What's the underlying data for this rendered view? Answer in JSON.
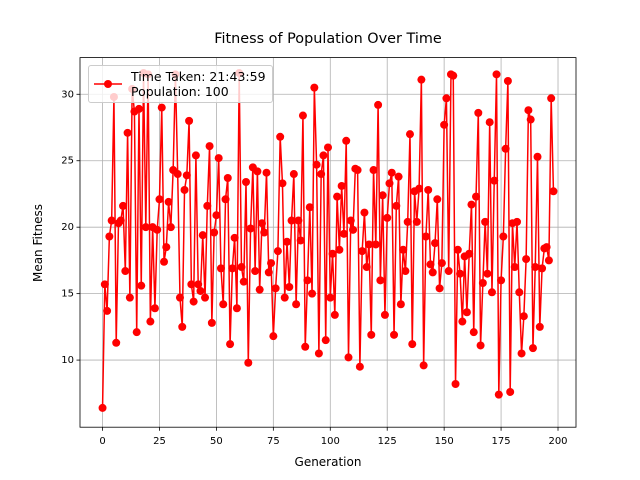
{
  "chart_data": {
    "type": "line",
    "title": "Fitness of Population Over Time",
    "x_label": "Generation",
    "y_label": "Mean Fitness",
    "x": [
      0,
      1,
      2,
      3,
      4,
      5,
      6,
      7,
      8,
      9,
      10,
      11,
      12,
      13,
      14,
      15,
      16,
      17,
      18,
      19,
      20,
      21,
      22,
      23,
      24,
      25,
      26,
      27,
      28,
      29,
      30,
      31,
      32,
      33,
      34,
      35,
      36,
      37,
      38,
      39,
      40,
      41,
      42,
      43,
      44,
      45,
      46,
      47,
      48,
      49,
      50,
      51,
      52,
      53,
      54,
      55,
      56,
      57,
      58,
      59,
      60,
      61,
      62,
      63,
      64,
      65,
      66,
      67,
      68,
      69,
      70,
      71,
      72,
      73,
      74,
      75,
      76,
      77,
      78,
      79,
      80,
      81,
      82,
      83,
      84,
      85,
      86,
      87,
      88,
      89,
      90,
      91,
      92,
      93,
      94,
      95,
      96,
      97,
      98,
      99,
      100,
      101,
      102,
      103,
      104,
      105,
      106,
      107,
      108,
      109,
      110,
      111,
      112,
      113,
      114,
      115,
      116,
      117,
      118,
      119,
      120,
      121,
      122,
      123,
      124,
      125,
      126,
      127,
      128,
      129,
      130,
      131,
      132,
      133,
      134,
      135,
      136,
      137,
      138,
      139,
      140,
      141,
      142,
      143,
      144,
      145,
      146,
      147,
      148,
      149,
      150,
      151,
      152,
      153,
      154,
      155,
      156,
      157,
      158,
      159,
      160,
      161,
      162,
      163,
      164,
      165,
      166,
      167,
      168,
      169,
      170,
      171,
      172,
      173,
      174,
      175,
      176,
      177,
      178,
      179,
      180,
      181,
      182,
      183,
      184,
      185,
      186,
      187,
      188,
      189,
      190,
      191,
      192,
      193,
      194,
      195,
      196,
      197,
      198
    ],
    "series": [
      {
        "name": "Time Taken: 21:43:59\nPopulation: 100",
        "color": "#ff0000",
        "values": [
          6.4,
          15.7,
          13.7,
          19.3,
          20.5,
          29.8,
          11.3,
          20.3,
          20.5,
          21.6,
          16.7,
          27.1,
          14.7,
          30.4,
          28.7,
          12.1,
          28.9,
          15.6,
          31.6,
          20.0,
          31.5,
          12.9,
          20.0,
          13.9,
          19.8,
          22.1,
          29.0,
          17.4,
          18.5,
          21.9,
          20.0,
          24.3,
          31.5,
          24.0,
          14.7,
          12.5,
          22.8,
          23.9,
          28.0,
          15.7,
          14.4,
          25.4,
          15.7,
          15.2,
          19.4,
          14.7,
          21.6,
          26.1,
          12.8,
          19.6,
          20.9,
          25.2,
          16.9,
          14.2,
          22.1,
          23.7,
          11.2,
          16.9,
          19.2,
          13.9,
          31.6,
          17.0,
          15.9,
          23.4,
          9.8,
          19.9,
          24.5,
          16.7,
          24.2,
          15.3,
          20.3,
          19.6,
          24.1,
          16.6,
          17.3,
          11.8,
          15.4,
          18.2,
          26.8,
          23.3,
          14.7,
          18.9,
          15.5,
          20.5,
          24.0,
          14.2,
          20.5,
          19.0,
          28.4,
          11.0,
          16.0,
          21.5,
          15.0,
          30.5,
          24.7,
          10.5,
          24.0,
          25.4,
          11.5,
          26.0,
          14.7,
          18.0,
          13.4,
          22.3,
          18.3,
          23.1,
          19.5,
          26.5,
          10.2,
          20.5,
          19.8,
          24.4,
          24.3,
          9.5,
          18.2,
          21.1,
          17.0,
          18.7,
          11.9,
          24.3,
          18.7,
          29.2,
          16.0,
          22.4,
          13.4,
          20.7,
          23.3,
          24.1,
          11.9,
          21.6,
          23.8,
          14.2,
          18.3,
          16.7,
          20.4,
          27.0,
          11.2,
          22.7,
          20.4,
          22.9,
          31.1,
          9.6,
          19.3,
          22.8,
          17.2,
          16.6,
          18.8,
          22.1,
          15.4,
          17.3,
          27.7,
          29.7,
          16.7,
          31.5,
          31.4,
          8.2,
          18.3,
          16.5,
          12.9,
          17.8,
          13.6,
          18.0,
          21.7,
          12.1,
          22.3,
          28.6,
          11.1,
          15.8,
          20.4,
          16.5,
          27.9,
          15.1,
          23.5,
          31.5,
          7.4,
          16.0,
          19.3,
          25.9,
          31.0,
          7.6,
          20.3,
          17.0,
          20.4,
          15.1,
          10.5,
          13.3,
          17.6,
          28.8,
          28.1,
          10.9,
          17.0,
          25.3,
          12.5,
          16.9,
          18.4,
          18.5,
          17.5,
          29.7,
          22.7
        ]
      }
    ],
    "xlim": [
      -9.9,
      207.9
    ],
    "ylim": [
      4.95,
      32.76
    ],
    "xticks": [
      0,
      25,
      50,
      75,
      100,
      125,
      150,
      175,
      200
    ],
    "yticks": [
      10,
      15,
      20,
      25,
      30
    ],
    "grid": true,
    "legend": "upper left"
  }
}
